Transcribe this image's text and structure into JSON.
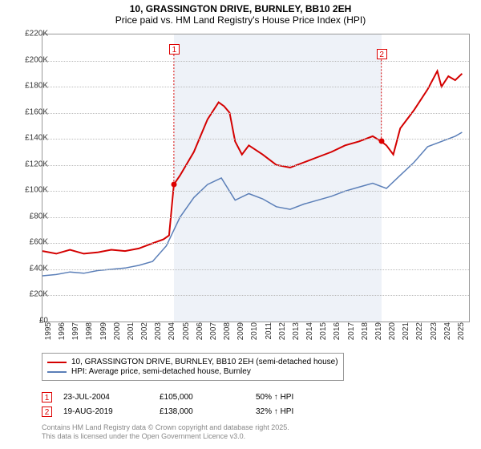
{
  "title_line1": "10, GRASSINGTON DRIVE, BURNLEY, BB10 2EH",
  "title_line2": "Price paid vs. HM Land Registry's House Price Index (HPI)",
  "chart": {
    "type": "line",
    "x_start": 1995,
    "x_end": 2026,
    "x_ticks": [
      1995,
      1996,
      1997,
      1998,
      1999,
      2000,
      2001,
      2002,
      2003,
      2004,
      2005,
      2006,
      2007,
      2008,
      2009,
      2010,
      2011,
      2012,
      2013,
      2014,
      2015,
      2016,
      2017,
      2018,
      2019,
      2020,
      2021,
      2022,
      2023,
      2024,
      2025
    ],
    "y_min": 0,
    "y_max": 220000,
    "y_ticks": [
      0,
      20000,
      40000,
      60000,
      80000,
      100000,
      120000,
      140000,
      160000,
      180000,
      200000,
      220000
    ],
    "y_tick_labels": [
      "£0",
      "£20K",
      "£40K",
      "£60K",
      "£80K",
      "£100K",
      "£120K",
      "£140K",
      "£160K",
      "£180K",
      "£200K",
      "£220K"
    ],
    "y_tick_fontsize": 10,
    "x_tick_fontsize": 10,
    "background_color": "#ffffff",
    "band_color": "#eef2f8",
    "grid_color": "#bbbbbb",
    "series": [
      {
        "name": "property",
        "label": "10, GRASSINGTON DRIVE, BURNLEY, BB10 2EH (semi-detached house)",
        "color": "#d40000",
        "line_width": 2,
        "data": [
          [
            1995,
            54000
          ],
          [
            1996,
            52000
          ],
          [
            1997,
            55000
          ],
          [
            1998,
            52000
          ],
          [
            1999,
            53000
          ],
          [
            2000,
            55000
          ],
          [
            2001,
            54000
          ],
          [
            2002,
            56000
          ],
          [
            2003,
            60000
          ],
          [
            2003.8,
            63000
          ],
          [
            2004.2,
            66000
          ],
          [
            2004.55,
            105000
          ],
          [
            2005,
            112000
          ],
          [
            2006,
            130000
          ],
          [
            2007,
            155000
          ],
          [
            2007.8,
            168000
          ],
          [
            2008.2,
            165000
          ],
          [
            2008.6,
            160000
          ],
          [
            2009,
            138000
          ],
          [
            2009.5,
            128000
          ],
          [
            2010,
            135000
          ],
          [
            2011,
            128000
          ],
          [
            2012,
            120000
          ],
          [
            2013,
            118000
          ],
          [
            2014,
            122000
          ],
          [
            2015,
            126000
          ],
          [
            2016,
            130000
          ],
          [
            2017,
            135000
          ],
          [
            2018,
            138000
          ],
          [
            2019,
            142000
          ],
          [
            2019.63,
            138000
          ],
          [
            2020,
            135000
          ],
          [
            2020.5,
            128000
          ],
          [
            2021,
            148000
          ],
          [
            2022,
            162000
          ],
          [
            2023,
            178000
          ],
          [
            2023.7,
            192000
          ],
          [
            2024,
            180000
          ],
          [
            2024.5,
            188000
          ],
          [
            2025,
            185000
          ],
          [
            2025.5,
            190000
          ]
        ]
      },
      {
        "name": "hpi",
        "label": "HPI: Average price, semi-detached house, Burnley",
        "color": "#5b7fb8",
        "line_width": 1.5,
        "data": [
          [
            1995,
            35000
          ],
          [
            1996,
            36000
          ],
          [
            1997,
            38000
          ],
          [
            1998,
            37000
          ],
          [
            1999,
            39000
          ],
          [
            2000,
            40000
          ],
          [
            2001,
            41000
          ],
          [
            2002,
            43000
          ],
          [
            2003,
            46000
          ],
          [
            2004,
            58000
          ],
          [
            2005,
            80000
          ],
          [
            2006,
            95000
          ],
          [
            2007,
            105000
          ],
          [
            2008,
            110000
          ],
          [
            2009,
            93000
          ],
          [
            2010,
            98000
          ],
          [
            2011,
            94000
          ],
          [
            2012,
            88000
          ],
          [
            2013,
            86000
          ],
          [
            2014,
            90000
          ],
          [
            2015,
            93000
          ],
          [
            2016,
            96000
          ],
          [
            2017,
            100000
          ],
          [
            2018,
            103000
          ],
          [
            2019,
            106000
          ],
          [
            2020,
            102000
          ],
          [
            2021,
            112000
          ],
          [
            2022,
            122000
          ],
          [
            2023,
            134000
          ],
          [
            2024,
            138000
          ],
          [
            2025,
            142000
          ],
          [
            2025.5,
            145000
          ]
        ]
      }
    ],
    "markers": [
      {
        "id": "1",
        "x": 2004.55,
        "y": 105000,
        "label_y_offset": -175
      },
      {
        "id": "2",
        "x": 2019.63,
        "y": 138000,
        "label_y_offset": -115
      }
    ],
    "shaded_band": {
      "x_start": 2004.55,
      "x_end": 2019.63
    }
  },
  "legend": {
    "border_color": "#999999"
  },
  "footer_rows": [
    {
      "marker": "1",
      "date": "23-JUL-2004",
      "price": "£105,000",
      "delta": "50% ↑ HPI"
    },
    {
      "marker": "2",
      "date": "19-AUG-2019",
      "price": "£138,000",
      "delta": "32% ↑ HPI"
    }
  ],
  "attribution_line1": "Contains HM Land Registry data © Crown copyright and database right 2025.",
  "attribution_line2": "This data is licensed under the Open Government Licence v3.0."
}
